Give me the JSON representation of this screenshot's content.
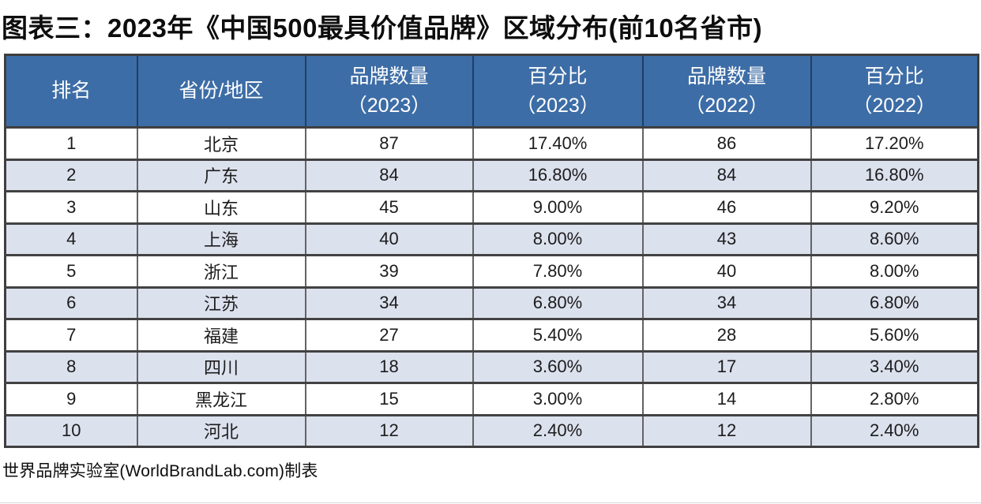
{
  "title": "图表三：2023年《中国500最具价值品牌》区域分布(前10名省市)",
  "footer": "世界品牌实验室(WorldBrandLab.com)制表",
  "colors": {
    "header_bg": "#3d6da6",
    "header_text": "#ffffff",
    "alt_row_bg": "#dce1ee",
    "row_bg": "#ffffff",
    "grid_horizontal": "#424242",
    "grid_vertical": "#646464",
    "header_divider": "#1f3f63",
    "title_text": "#0d0d0d"
  },
  "chart_data": {
    "type": "table",
    "title": "图表三：2023年《中国500最具价值品牌》区域分布(前10名省市)",
    "columns": [
      "排名",
      "省份/地区",
      "品牌数量\n（2023）",
      "百分比\n（2023）",
      "品牌数量\n（2022）",
      "百分比\n（2022）"
    ],
    "rows": [
      [
        "1",
        "北京",
        "87",
        "17.40%",
        "86",
        "17.20%"
      ],
      [
        "2",
        "广东",
        "84",
        "16.80%",
        "84",
        "16.80%"
      ],
      [
        "3",
        "山东",
        "45",
        "9.00%",
        "46",
        "9.20%"
      ],
      [
        "4",
        "上海",
        "40",
        "8.00%",
        "43",
        "8.60%"
      ],
      [
        "5",
        "浙江",
        "39",
        "7.80%",
        "40",
        "8.00%"
      ],
      [
        "6",
        "江苏",
        "34",
        "6.80%",
        "34",
        "6.80%"
      ],
      [
        "7",
        "福建",
        "27",
        "5.40%",
        "28",
        "5.60%"
      ],
      [
        "8",
        "四川",
        "18",
        "3.60%",
        "17",
        "3.40%"
      ],
      [
        "9",
        "黑龙江",
        "15",
        "3.00%",
        "14",
        "2.80%"
      ],
      [
        "10",
        "河北",
        "12",
        "2.40%",
        "12",
        "2.40%"
      ]
    ],
    "source_note": "世界品牌实验室(WorldBrandLab.com)制表"
  }
}
